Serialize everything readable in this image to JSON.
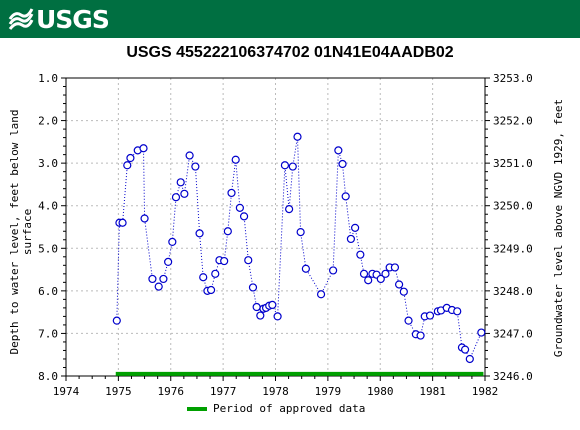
{
  "header": {
    "logo_text": "USGS"
  },
  "chart_data": {
    "type": "line",
    "title": "USGS 455222106374702 01N41E04AADB02",
    "ylabel_left": "Depth to water level, feet below land surface",
    "ylabel_right": "Groundwater level above NGVD 1929, feet",
    "xlim": [
      1974,
      1982
    ],
    "ylim_left": [
      1.0,
      8.0
    ],
    "ylim_right": [
      3253.0,
      3246.0
    ],
    "x_ticks": [
      "1974",
      "1975",
      "1976",
      "1977",
      "1978",
      "1979",
      "1980",
      "1981",
      "1982"
    ],
    "y_ticks_left": [
      "1.0",
      "2.0",
      "3.0",
      "4.0",
      "5.0",
      "6.0",
      "7.0",
      "8.0"
    ],
    "y_ticks_right": [
      "3253.0",
      "3252.0",
      "3251.0",
      "3250.0",
      "3249.0",
      "3248.0",
      "3247.0",
      "3246.0"
    ],
    "grid": true,
    "series": [
      {
        "color": "#0000cc",
        "style": "dotted-with-circle-markers",
        "points": [
          [
            1974.97,
            6.7
          ],
          [
            1975.02,
            4.4
          ],
          [
            1975.08,
            4.4
          ],
          [
            1975.17,
            3.05
          ],
          [
            1975.23,
            2.88
          ],
          [
            1975.37,
            2.7
          ],
          [
            1975.48,
            2.65
          ],
          [
            1975.5,
            4.3
          ],
          [
            1975.65,
            5.72
          ],
          [
            1975.77,
            5.9
          ],
          [
            1975.86,
            5.72
          ],
          [
            1975.95,
            5.32
          ],
          [
            1976.03,
            4.85
          ],
          [
            1976.1,
            3.8
          ],
          [
            1976.19,
            3.45
          ],
          [
            1976.26,
            3.72
          ],
          [
            1976.36,
            2.82
          ],
          [
            1976.47,
            3.08
          ],
          [
            1976.55,
            4.65
          ],
          [
            1976.62,
            5.68
          ],
          [
            1976.7,
            6.0
          ],
          [
            1976.77,
            5.98
          ],
          [
            1976.85,
            5.6
          ],
          [
            1976.93,
            5.28
          ],
          [
            1977.02,
            5.3
          ],
          [
            1977.09,
            4.6
          ],
          [
            1977.16,
            3.7
          ],
          [
            1977.24,
            2.92
          ],
          [
            1977.32,
            4.05
          ],
          [
            1977.4,
            4.25
          ],
          [
            1977.48,
            5.28
          ],
          [
            1977.57,
            5.92
          ],
          [
            1977.64,
            6.38
          ],
          [
            1977.71,
            6.58
          ],
          [
            1977.77,
            6.42
          ],
          [
            1977.82,
            6.4
          ],
          [
            1977.88,
            6.35
          ],
          [
            1977.94,
            6.33
          ],
          [
            1978.04,
            6.6
          ],
          [
            1978.18,
            3.05
          ],
          [
            1978.26,
            4.08
          ],
          [
            1978.33,
            3.08
          ],
          [
            1978.42,
            2.38
          ],
          [
            1978.48,
            4.62
          ],
          [
            1978.58,
            5.48
          ],
          [
            1978.87,
            6.08
          ],
          [
            1979.1,
            5.52
          ],
          [
            1979.2,
            2.7
          ],
          [
            1979.28,
            3.02
          ],
          [
            1979.34,
            3.78
          ],
          [
            1979.44,
            4.78
          ],
          [
            1979.52,
            4.52
          ],
          [
            1979.62,
            5.15
          ],
          [
            1979.69,
            5.6
          ],
          [
            1979.77,
            5.75
          ],
          [
            1979.85,
            5.6
          ],
          [
            1979.93,
            5.62
          ],
          [
            1980.01,
            5.72
          ],
          [
            1980.1,
            5.6
          ],
          [
            1980.18,
            5.45
          ],
          [
            1980.28,
            5.45
          ],
          [
            1980.36,
            5.85
          ],
          [
            1980.45,
            6.02
          ],
          [
            1980.54,
            6.7
          ],
          [
            1980.68,
            7.02
          ],
          [
            1980.77,
            7.05
          ],
          [
            1980.85,
            6.6
          ],
          [
            1980.95,
            6.58
          ],
          [
            1981.1,
            6.48
          ],
          [
            1981.16,
            6.46
          ],
          [
            1981.27,
            6.4
          ],
          [
            1981.37,
            6.45
          ],
          [
            1981.47,
            6.48
          ],
          [
            1981.56,
            7.33
          ],
          [
            1981.62,
            7.38
          ],
          [
            1981.71,
            7.6
          ],
          [
            1981.93,
            6.98
          ]
        ]
      }
    ],
    "approved_period": {
      "start": 1974.95,
      "end": 1981.97,
      "depth": 7.95,
      "color": "#00a000"
    },
    "legend": {
      "label": "Period of approved data",
      "placement": "bottom-center"
    }
  }
}
